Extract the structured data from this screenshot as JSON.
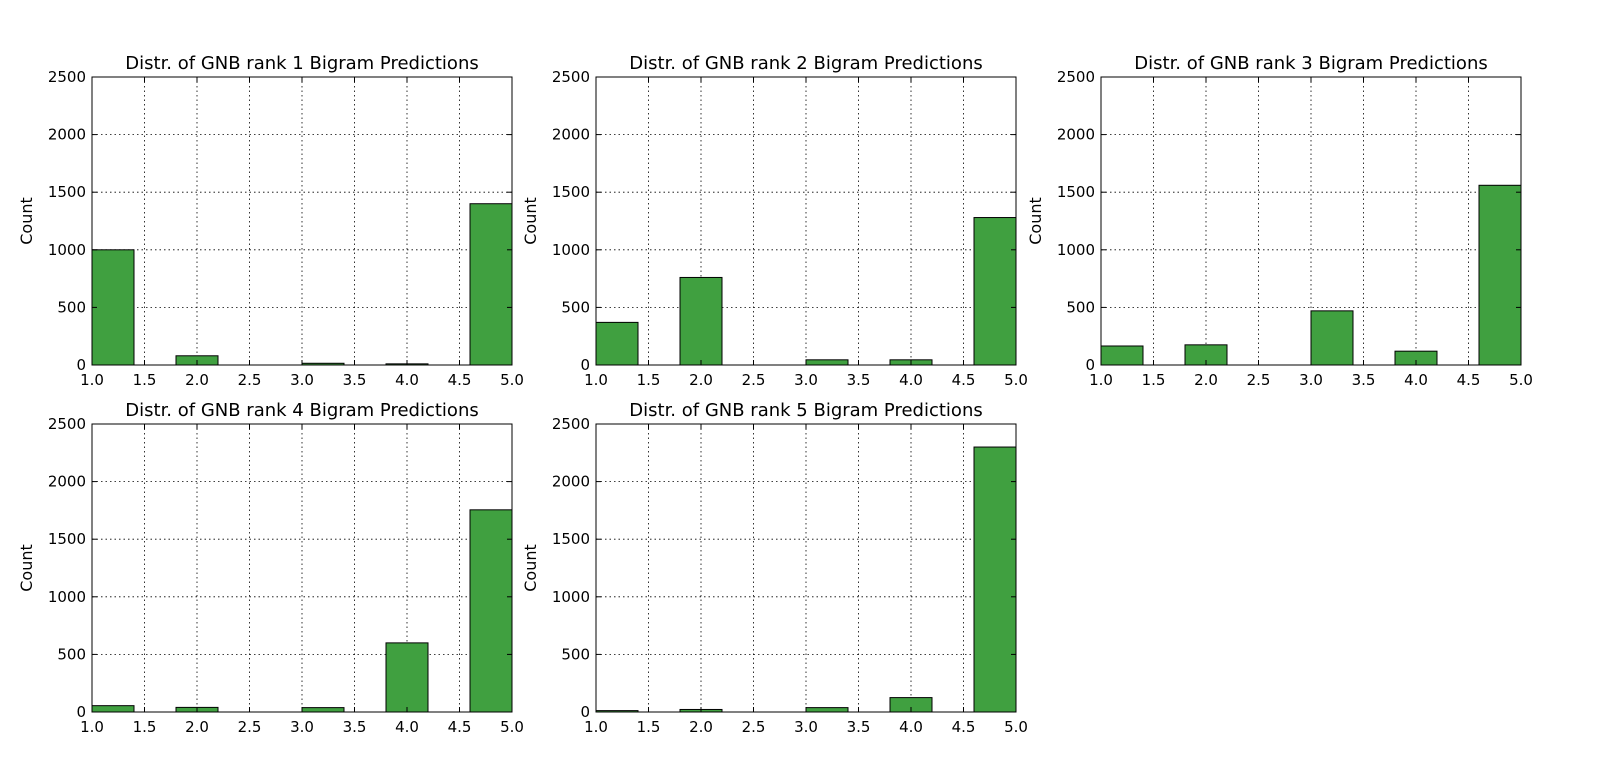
{
  "chart_data": [
    {
      "type": "bar",
      "title": "Distr. of GNB rank 1 Bigram Predictions",
      "ylabel": "Count",
      "xlim": [
        1.0,
        5.0
      ],
      "ylim": [
        0,
        2500
      ],
      "xticks": [
        "1.0",
        "1.5",
        "2.0",
        "2.5",
        "3.0",
        "3.5",
        "4.0",
        "4.5",
        "5.0"
      ],
      "yticks": [
        "0",
        "500",
        "1000",
        "1500",
        "2000",
        "2500"
      ],
      "grid": true,
      "color": "#40a040",
      "bins": [
        {
          "x0": 1.0,
          "x1": 1.4,
          "value": 1000
        },
        {
          "x0": 1.8,
          "x1": 2.2,
          "value": 80
        },
        {
          "x0": 3.0,
          "x1": 3.4,
          "value": 15
        },
        {
          "x0": 3.8,
          "x1": 4.2,
          "value": 10
        },
        {
          "x0": 4.6,
          "x1": 5.0,
          "value": 1400
        }
      ]
    },
    {
      "type": "bar",
      "title": "Distr. of GNB rank 2 Bigram Predictions",
      "ylabel": "Count",
      "xlim": [
        1.0,
        5.0
      ],
      "ylim": [
        0,
        2500
      ],
      "xticks": [
        "1.0",
        "1.5",
        "2.0",
        "2.5",
        "3.0",
        "3.5",
        "4.0",
        "4.5",
        "5.0"
      ],
      "yticks": [
        "0",
        "500",
        "1000",
        "1500",
        "2000",
        "2500"
      ],
      "grid": true,
      "color": "#40a040",
      "bins": [
        {
          "x0": 1.0,
          "x1": 1.4,
          "value": 370
        },
        {
          "x0": 1.8,
          "x1": 2.2,
          "value": 760
        },
        {
          "x0": 3.0,
          "x1": 3.4,
          "value": 45
        },
        {
          "x0": 3.8,
          "x1": 4.2,
          "value": 45
        },
        {
          "x0": 4.6,
          "x1": 5.0,
          "value": 1280
        }
      ]
    },
    {
      "type": "bar",
      "title": "Distr. of GNB rank 3 Bigram Predictions",
      "ylabel": "Count",
      "xlim": [
        1.0,
        5.0
      ],
      "ylim": [
        0,
        2500
      ],
      "xticks": [
        "1.0",
        "1.5",
        "2.0",
        "2.5",
        "3.0",
        "3.5",
        "4.0",
        "4.5",
        "5.0"
      ],
      "yticks": [
        "0",
        "500",
        "1000",
        "1500",
        "2000",
        "2500"
      ],
      "grid": true,
      "color": "#40a040",
      "bins": [
        {
          "x0": 1.0,
          "x1": 1.4,
          "value": 165
        },
        {
          "x0": 1.8,
          "x1": 2.2,
          "value": 175
        },
        {
          "x0": 3.0,
          "x1": 3.4,
          "value": 470
        },
        {
          "x0": 3.8,
          "x1": 4.2,
          "value": 120
        },
        {
          "x0": 4.6,
          "x1": 5.0,
          "value": 1560
        }
      ]
    },
    {
      "type": "bar",
      "title": "Distr. of GNB rank 4 Bigram Predictions",
      "ylabel": "Count",
      "xlim": [
        1.0,
        5.0
      ],
      "ylim": [
        0,
        2500
      ],
      "xticks": [
        "1.0",
        "1.5",
        "2.0",
        "2.5",
        "3.0",
        "3.5",
        "4.0",
        "4.5",
        "5.0"
      ],
      "yticks": [
        "0",
        "500",
        "1000",
        "1500",
        "2000",
        "2500"
      ],
      "grid": true,
      "color": "#40a040",
      "bins": [
        {
          "x0": 1.0,
          "x1": 1.4,
          "value": 55
        },
        {
          "x0": 1.8,
          "x1": 2.2,
          "value": 40
        },
        {
          "x0": 3.0,
          "x1": 3.4,
          "value": 38
        },
        {
          "x0": 3.8,
          "x1": 4.2,
          "value": 600
        },
        {
          "x0": 4.6,
          "x1": 5.0,
          "value": 1755
        }
      ]
    },
    {
      "type": "bar",
      "title": "Distr. of GNB rank 5 Bigram Predictions",
      "ylabel": "Count",
      "xlim": [
        1.0,
        5.0
      ],
      "ylim": [
        0,
        2500
      ],
      "xticks": [
        "1.0",
        "1.5",
        "2.0",
        "2.5",
        "3.0",
        "3.5",
        "4.0",
        "4.5",
        "5.0"
      ],
      "yticks": [
        "0",
        "500",
        "1000",
        "1500",
        "2000",
        "2500"
      ],
      "grid": true,
      "color": "#40a040",
      "bins": [
        {
          "x0": 1.0,
          "x1": 1.4,
          "value": 12
        },
        {
          "x0": 1.8,
          "x1": 2.2,
          "value": 22
        },
        {
          "x0": 3.0,
          "x1": 3.4,
          "value": 38
        },
        {
          "x0": 3.8,
          "x1": 4.2,
          "value": 125
        },
        {
          "x0": 4.6,
          "x1": 5.0,
          "value": 2300
        }
      ]
    }
  ]
}
